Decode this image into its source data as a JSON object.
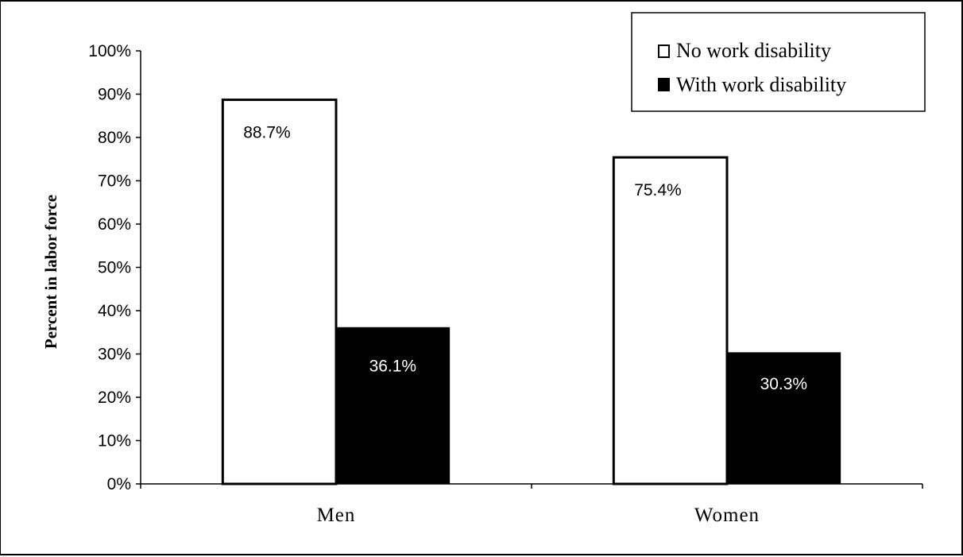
{
  "chart_data": {
    "type": "bar",
    "categories": [
      "Men",
      "Women"
    ],
    "series": [
      {
        "name": "No work disability",
        "values": [
          88.7,
          75.4
        ],
        "labels": [
          "88.7%",
          "75.4%"
        ],
        "color": "#ffffff"
      },
      {
        "name": "With work disability",
        "values": [
          36.1,
          30.3
        ],
        "labels": [
          "36.1%",
          "30.3%"
        ],
        "color": "#000000"
      }
    ],
    "ylabel": "Percent in labor force",
    "ylim": [
      0,
      100
    ],
    "yticks": [
      "0%",
      "10%",
      "20%",
      "30%",
      "40%",
      "50%",
      "60%",
      "70%",
      "80%",
      "90%",
      "100%"
    ],
    "legend_position": "top-right",
    "grid": false
  }
}
